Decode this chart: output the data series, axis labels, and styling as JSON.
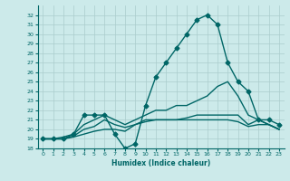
{
  "xlabel": "Humidex (Indice chaleur)",
  "bg_color": "#cceaea",
  "line_color": "#006666",
  "grid_color": "#aacccc",
  "xlim": [
    -0.5,
    23.5
  ],
  "ylim": [
    18,
    33
  ],
  "yticks": [
    18,
    19,
    20,
    21,
    22,
    23,
    24,
    25,
    26,
    27,
    28,
    29,
    30,
    31,
    32
  ],
  "xticks": [
    0,
    1,
    2,
    3,
    4,
    5,
    6,
    7,
    8,
    9,
    10,
    11,
    12,
    13,
    14,
    15,
    16,
    17,
    18,
    19,
    20,
    21,
    22,
    23
  ],
  "lines": [
    {
      "x": [
        0,
        1,
        2,
        3,
        4,
        5,
        6,
        7,
        8,
        9,
        10,
        11,
        12,
        13,
        14,
        15,
        16,
        17,
        18,
        19,
        20,
        21,
        22,
        23
      ],
      "y": [
        19,
        19,
        19,
        19.5,
        21.5,
        21.5,
        21.5,
        19.5,
        18,
        18.5,
        22.5,
        25.5,
        27,
        28.5,
        30,
        31.5,
        32,
        31,
        27,
        25,
        24,
        21,
        21,
        20.5
      ],
      "marker": "D",
      "markersize": 2.5,
      "lw": 1.0
    },
    {
      "x": [
        0,
        1,
        2,
        3,
        4,
        5,
        6,
        7,
        8,
        9,
        10,
        11,
        12,
        13,
        14,
        15,
        16,
        17,
        18,
        19,
        20,
        21,
        22,
        23
      ],
      "y": [
        19,
        19,
        19.2,
        19.5,
        20.5,
        21.0,
        21.5,
        21.0,
        20.5,
        21.0,
        21.5,
        22.0,
        22.0,
        22.5,
        22.5,
        23.0,
        23.5,
        24.5,
        25.0,
        23.5,
        21.5,
        21.0,
        20.5,
        20.0
      ],
      "marker": null,
      "markersize": 0,
      "lw": 1.0
    },
    {
      "x": [
        0,
        1,
        2,
        3,
        4,
        5,
        6,
        7,
        8,
        9,
        10,
        11,
        12,
        13,
        14,
        15,
        16,
        17,
        18,
        19,
        20,
        21,
        22,
        23
      ],
      "y": [
        19,
        19,
        19,
        19.3,
        20.0,
        20.3,
        21.0,
        20.5,
        20.2,
        20.5,
        21.0,
        21.0,
        21.0,
        21.0,
        21.2,
        21.5,
        21.5,
        21.5,
        21.5,
        21.5,
        20.5,
        21.0,
        20.5,
        20.0
      ],
      "marker": null,
      "markersize": 0,
      "lw": 1.0
    },
    {
      "x": [
        0,
        1,
        2,
        3,
        4,
        5,
        6,
        7,
        8,
        9,
        10,
        11,
        12,
        13,
        14,
        15,
        16,
        17,
        18,
        19,
        20,
        21,
        22,
        23
      ],
      "y": [
        19,
        19,
        19,
        19.2,
        19.5,
        19.8,
        20.0,
        20.0,
        19.8,
        20.5,
        20.8,
        21.0,
        21.0,
        21.0,
        21.0,
        21.0,
        21.0,
        21.0,
        21.0,
        20.8,
        20.3,
        20.5,
        20.5,
        20.0
      ],
      "marker": null,
      "markersize": 0,
      "lw": 1.0
    }
  ]
}
